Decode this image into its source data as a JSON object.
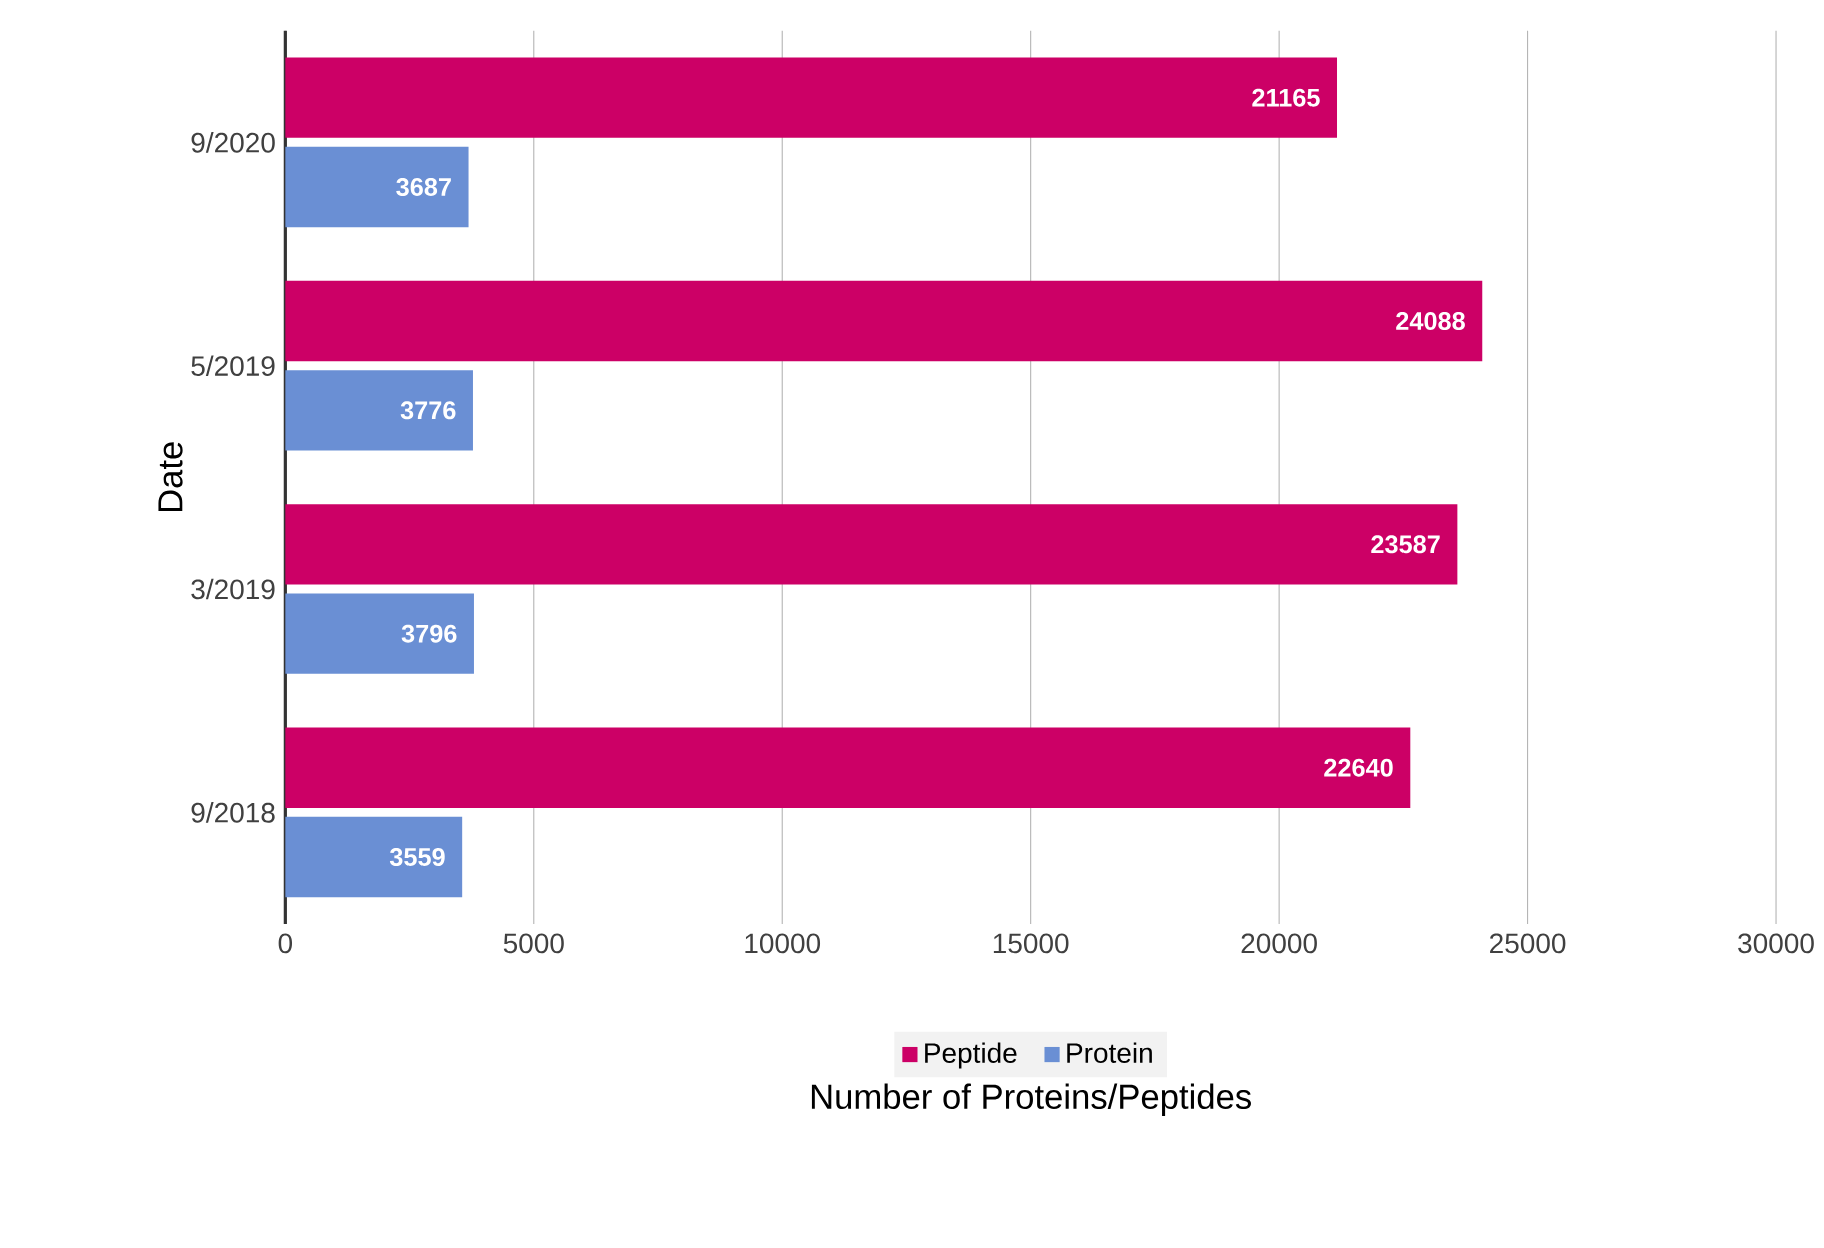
{
  "chart_data": {
    "type": "bar",
    "orientation": "horizontal",
    "xlabel": "Number of Proteins/Peptides",
    "ylabel": "Date",
    "categories": [
      "9/2020",
      "5/2019",
      "3/2019",
      "9/2018"
    ],
    "series": [
      {
        "name": "Peptide",
        "color": "#cc0066",
        "values": [
          21165,
          24088,
          23587,
          22640
        ]
      },
      {
        "name": "Protein",
        "color": "#6a8fd4",
        "values": [
          3687,
          3776,
          3796,
          3559
        ]
      }
    ],
    "xlim": [
      0,
      30000
    ],
    "xticks": [
      0,
      5000,
      10000,
      15000,
      20000,
      25000,
      30000
    ],
    "grid": "x",
    "legend": "bottom",
    "data_labels": true
  }
}
